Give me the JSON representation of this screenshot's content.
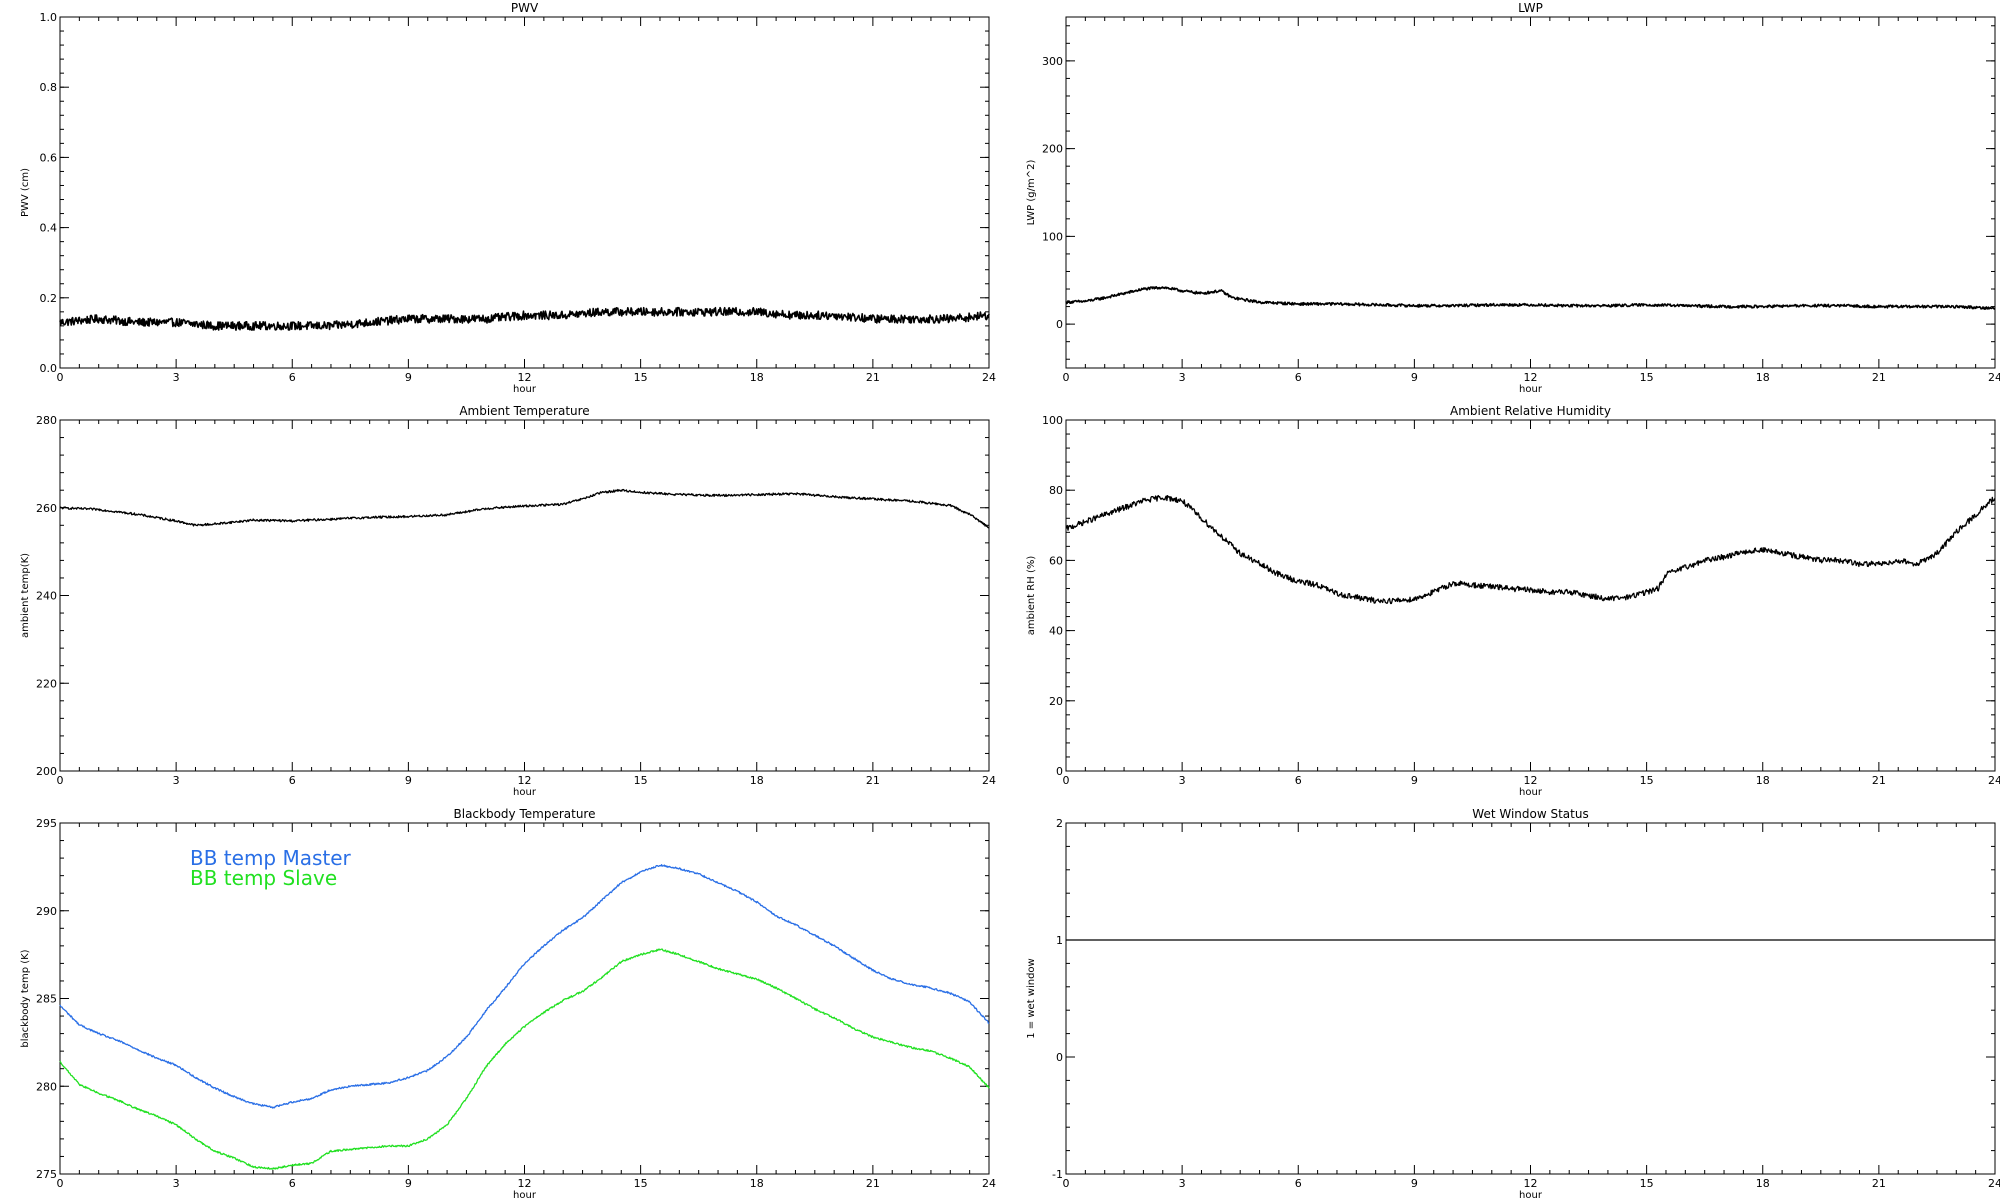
{
  "chart_data": [
    {
      "id": "pwv",
      "type": "line",
      "title": "PWV",
      "xlabel": "hour",
      "ylabel": "PWV (cm)",
      "xlim": [
        0,
        24
      ],
      "ylim": [
        0,
        1.0
      ],
      "x_ticks": [
        0,
        3,
        6,
        9,
        12,
        15,
        18,
        21,
        24
      ],
      "y_ticks": [
        0.0,
        0.2,
        0.4,
        0.6,
        0.8,
        1.0
      ],
      "y_tick_labels": [
        "0.0",
        "0.2",
        "0.4",
        "0.6",
        "0.8",
        "1.0"
      ],
      "series": [
        {
          "color": "#000000",
          "noise": 0.012,
          "x": [
            0,
            1,
            2,
            3,
            4,
            5,
            6,
            7,
            8,
            9,
            10,
            11,
            12,
            13,
            14,
            15,
            16,
            17,
            18,
            19,
            20,
            21,
            22,
            23,
            24
          ],
          "y": [
            0.13,
            0.14,
            0.13,
            0.13,
            0.12,
            0.12,
            0.12,
            0.12,
            0.13,
            0.14,
            0.14,
            0.14,
            0.15,
            0.15,
            0.16,
            0.16,
            0.16,
            0.16,
            0.16,
            0.15,
            0.15,
            0.14,
            0.14,
            0.14,
            0.15
          ]
        }
      ]
    },
    {
      "id": "lwp",
      "type": "line",
      "title": "LWP",
      "xlabel": "hour",
      "ylabel": "LWP (g/m^2)",
      "xlim": [
        0,
        24
      ],
      "ylim": [
        -50,
        350
      ],
      "x_ticks": [
        0,
        3,
        6,
        9,
        12,
        15,
        18,
        21,
        24
      ],
      "y_ticks": [
        0,
        100,
        200,
        300
      ],
      "y_tick_labels": [
        "0",
        "100",
        "200",
        "300"
      ],
      "series": [
        {
          "color": "#000000",
          "noise": 1.5,
          "x": [
            0,
            0.5,
            1,
            1.5,
            2,
            2.5,
            3,
            3.5,
            4,
            4.3,
            5,
            6,
            7,
            8,
            9,
            10,
            11,
            12,
            13,
            14,
            15,
            16,
            17,
            18,
            19,
            20,
            21,
            22,
            23,
            24
          ],
          "y": [
            25,
            26,
            30,
            35,
            40,
            42,
            38,
            35,
            38,
            30,
            25,
            23,
            23,
            22,
            21,
            21,
            22,
            22,
            21,
            21,
            22,
            21,
            20,
            20,
            21,
            21,
            20,
            20,
            20,
            18
          ]
        }
      ]
    },
    {
      "id": "ambient-temp",
      "type": "line",
      "title": "Ambient Temperature",
      "xlabel": "hour",
      "ylabel": "ambient temp(K)",
      "xlim": [
        0,
        24
      ],
      "ylim": [
        200,
        280
      ],
      "x_ticks": [
        0,
        3,
        6,
        9,
        12,
        15,
        18,
        21,
        24
      ],
      "y_ticks": [
        200,
        220,
        240,
        260,
        280
      ],
      "y_tick_labels": [
        "200",
        "220",
        "240",
        "260",
        "280"
      ],
      "series": [
        {
          "color": "#000000",
          "noise": 0.25,
          "x": [
            0,
            1,
            2,
            3,
            3.5,
            4,
            5,
            6,
            7,
            8,
            9,
            10,
            11,
            12,
            13,
            13.5,
            14,
            14.5,
            15,
            16,
            17,
            18,
            19,
            20,
            21,
            22,
            23,
            23.5,
            24
          ],
          "y": [
            260,
            259.6,
            258.5,
            257,
            256,
            256.3,
            257.2,
            257,
            257.4,
            257.8,
            258,
            258.4,
            259.8,
            260.4,
            260.8,
            262,
            263.5,
            264,
            263.5,
            263,
            262.8,
            263,
            263.2,
            262.5,
            262,
            261.5,
            260.5,
            258.5,
            255.5
          ]
        }
      ]
    },
    {
      "id": "ambient-rh",
      "type": "line",
      "title": "Ambient Relative Humidity",
      "xlabel": "hour",
      "ylabel": "ambient RH (%)",
      "xlim": [
        0,
        24
      ],
      "ylim": [
        0,
        100
      ],
      "x_ticks": [
        0,
        3,
        6,
        9,
        12,
        15,
        18,
        21,
        24
      ],
      "y_ticks": [
        0,
        20,
        40,
        60,
        80,
        100
      ],
      "y_tick_labels": [
        "0",
        "20",
        "40",
        "60",
        "80",
        "100"
      ],
      "series": [
        {
          "color": "#000000",
          "noise": 0.8,
          "x": [
            0,
            0.5,
            1,
            1.5,
            2,
            2.5,
            3,
            3.5,
            4,
            4.5,
            5,
            5.5,
            6,
            6.5,
            7,
            7.5,
            8,
            8.5,
            9,
            9.5,
            10,
            10.5,
            11,
            11.5,
            12,
            12.5,
            13,
            13.5,
            14,
            14.5,
            15,
            15.3,
            15.5,
            16,
            16.5,
            17,
            17.5,
            18,
            18.5,
            19,
            19.5,
            20,
            20.5,
            21,
            21.5,
            22,
            22.5,
            23,
            23.5,
            24
          ],
          "y": [
            69,
            71,
            73,
            75,
            77,
            78,
            77,
            72,
            67,
            62,
            59,
            56,
            54,
            53,
            50.5,
            49.5,
            48.5,
            48.5,
            49,
            51,
            53.5,
            53,
            52.5,
            52,
            51.5,
            51,
            51,
            50,
            49,
            49.5,
            51,
            52,
            56,
            58,
            60,
            61,
            62.5,
            63,
            62,
            61,
            60,
            60,
            59,
            59,
            60,
            59,
            62,
            68,
            73,
            78
          ]
        }
      ]
    },
    {
      "id": "bb-temp",
      "type": "line",
      "title": "Blackbody Temperature",
      "xlabel": "hour",
      "ylabel": "blackbody temp (K)",
      "xlim": [
        0,
        24
      ],
      "ylim": [
        275,
        295
      ],
      "x_ticks": [
        0,
        3,
        6,
        9,
        12,
        15,
        18,
        21,
        24
      ],
      "y_ticks": [
        275,
        280,
        285,
        290,
        295
      ],
      "y_tick_labels": [
        "275",
        "280",
        "285",
        "290",
        "295"
      ],
      "legend": [
        "BB temp Master",
        "BB temp Slave"
      ],
      "series": [
        {
          "name": "BB temp Master",
          "color": "#2a6fe6",
          "noise": 0.05,
          "x": [
            0,
            0.5,
            1,
            1.5,
            2,
            2.5,
            3,
            3.5,
            4,
            4.5,
            5,
            5.5,
            6,
            6.5,
            7,
            7.5,
            8,
            8.5,
            9,
            9.5,
            10,
            10.5,
            11,
            11.5,
            12,
            12.5,
            13,
            13.5,
            14,
            14.5,
            15,
            15.5,
            16,
            16.5,
            17,
            17.5,
            18,
            18.5,
            19,
            19.5,
            20,
            20.5,
            21,
            21.5,
            22,
            22.5,
            23,
            23.5,
            24
          ],
          "y": [
            284.6,
            283.5,
            283,
            282.6,
            282.1,
            281.6,
            281.2,
            280.5,
            279.9,
            279.4,
            279,
            278.8,
            279.1,
            279.3,
            279.8,
            280,
            280.1,
            280.2,
            280.5,
            280.9,
            281.7,
            282.8,
            284.3,
            285.6,
            287,
            288,
            288.9,
            289.6,
            290.6,
            291.6,
            292.2,
            292.6,
            292.4,
            292.1,
            291.6,
            291.1,
            290.5,
            289.7,
            289.2,
            288.6,
            288,
            287.3,
            286.6,
            286.1,
            285.8,
            285.6,
            285.3,
            284.8,
            283.6
          ]
        },
        {
          "name": "BB temp Slave",
          "color": "#22e022",
          "noise": 0.05,
          "x": [
            0,
            0.5,
            1,
            1.5,
            2,
            2.5,
            3,
            3.5,
            4,
            4.5,
            5,
            5.5,
            6,
            6.5,
            7,
            7.5,
            8,
            8.5,
            9,
            9.5,
            10,
            10.5,
            11,
            11.5,
            12,
            12.5,
            13,
            13.5,
            14,
            14.5,
            15,
            15.5,
            16,
            16.5,
            17,
            17.5,
            18,
            18.5,
            19,
            19.5,
            20,
            20.5,
            21,
            21.5,
            22,
            22.5,
            23,
            23.5,
            24
          ],
          "y": [
            281.4,
            280.1,
            279.6,
            279.2,
            278.7,
            278.3,
            277.8,
            277,
            276.3,
            275.9,
            275.4,
            275.3,
            275.5,
            275.6,
            276.3,
            276.4,
            276.5,
            276.6,
            276.6,
            277,
            277.8,
            279.3,
            281.1,
            282.4,
            283.4,
            284.2,
            284.9,
            285.4,
            286.2,
            287.1,
            287.5,
            287.8,
            287.5,
            287.1,
            286.7,
            286.4,
            286.1,
            285.6,
            285,
            284.4,
            283.9,
            283.3,
            282.8,
            282.5,
            282.2,
            282,
            281.6,
            281.1,
            279.9
          ]
        }
      ]
    },
    {
      "id": "wet-window",
      "type": "line",
      "title": "Wet Window Status",
      "xlabel": "hour",
      "ylabel": "1 = wet window",
      "xlim": [
        0,
        24
      ],
      "ylim": [
        -1,
        2
      ],
      "x_ticks": [
        0,
        3,
        6,
        9,
        12,
        15,
        18,
        21,
        24
      ],
      "y_ticks": [
        -1,
        0,
        1,
        2
      ],
      "y_tick_labels": [
        "-1",
        "0",
        "1",
        "2"
      ],
      "series": [
        {
          "color": "#000000",
          "noise": 0,
          "x": [
            0,
            24
          ],
          "y": [
            1,
            1
          ]
        }
      ]
    }
  ]
}
